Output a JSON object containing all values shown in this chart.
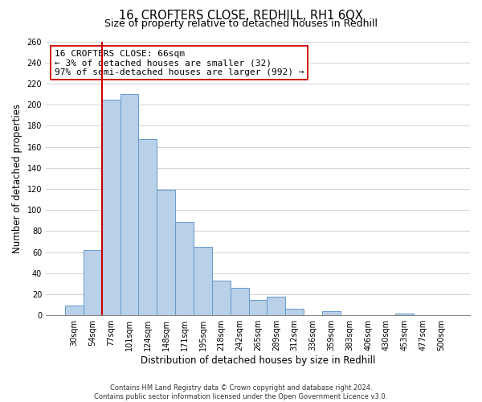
{
  "title": "16, CROFTERS CLOSE, REDHILL, RH1 6QX",
  "subtitle": "Size of property relative to detached houses in Redhill",
  "xlabel": "Distribution of detached houses by size in Redhill",
  "ylabel": "Number of detached properties",
  "bin_labels": [
    "30sqm",
    "54sqm",
    "77sqm",
    "101sqm",
    "124sqm",
    "148sqm",
    "171sqm",
    "195sqm",
    "218sqm",
    "242sqm",
    "265sqm",
    "289sqm",
    "312sqm",
    "336sqm",
    "359sqm",
    "383sqm",
    "406sqm",
    "430sqm",
    "453sqm",
    "477sqm",
    "500sqm"
  ],
  "bar_values": [
    9,
    62,
    205,
    210,
    167,
    119,
    89,
    65,
    33,
    26,
    15,
    18,
    6,
    0,
    4,
    0,
    0,
    0,
    2,
    0,
    0
  ],
  "bar_color": "#b8d0e8",
  "bar_edge_color": "#6699cc",
  "highlight_line_color": "#cc0000",
  "annotation_line1": "16 CROFTERS CLOSE: 66sqm",
  "annotation_line2": "← 3% of detached houses are smaller (32)",
  "annotation_line3": "97% of semi-detached houses are larger (992) →",
  "annotation_box_color": "#ffffff",
  "annotation_box_edge_color": "#cc0000",
  "ylim": [
    0,
    260
  ],
  "yticks": [
    0,
    20,
    40,
    60,
    80,
    100,
    120,
    140,
    160,
    180,
    200,
    220,
    240,
    260
  ],
  "footer_text": "Contains HM Land Registry data © Crown copyright and database right 2024.\nContains public sector information licensed under the Open Government Licence v3.0.",
  "background_color": "#ffffff",
  "grid_color": "#cccccc",
  "title_fontsize": 10.5,
  "subtitle_fontsize": 9,
  "axis_label_fontsize": 8.5,
  "tick_fontsize": 7,
  "annotation_fontsize": 8,
  "footer_fontsize": 6
}
